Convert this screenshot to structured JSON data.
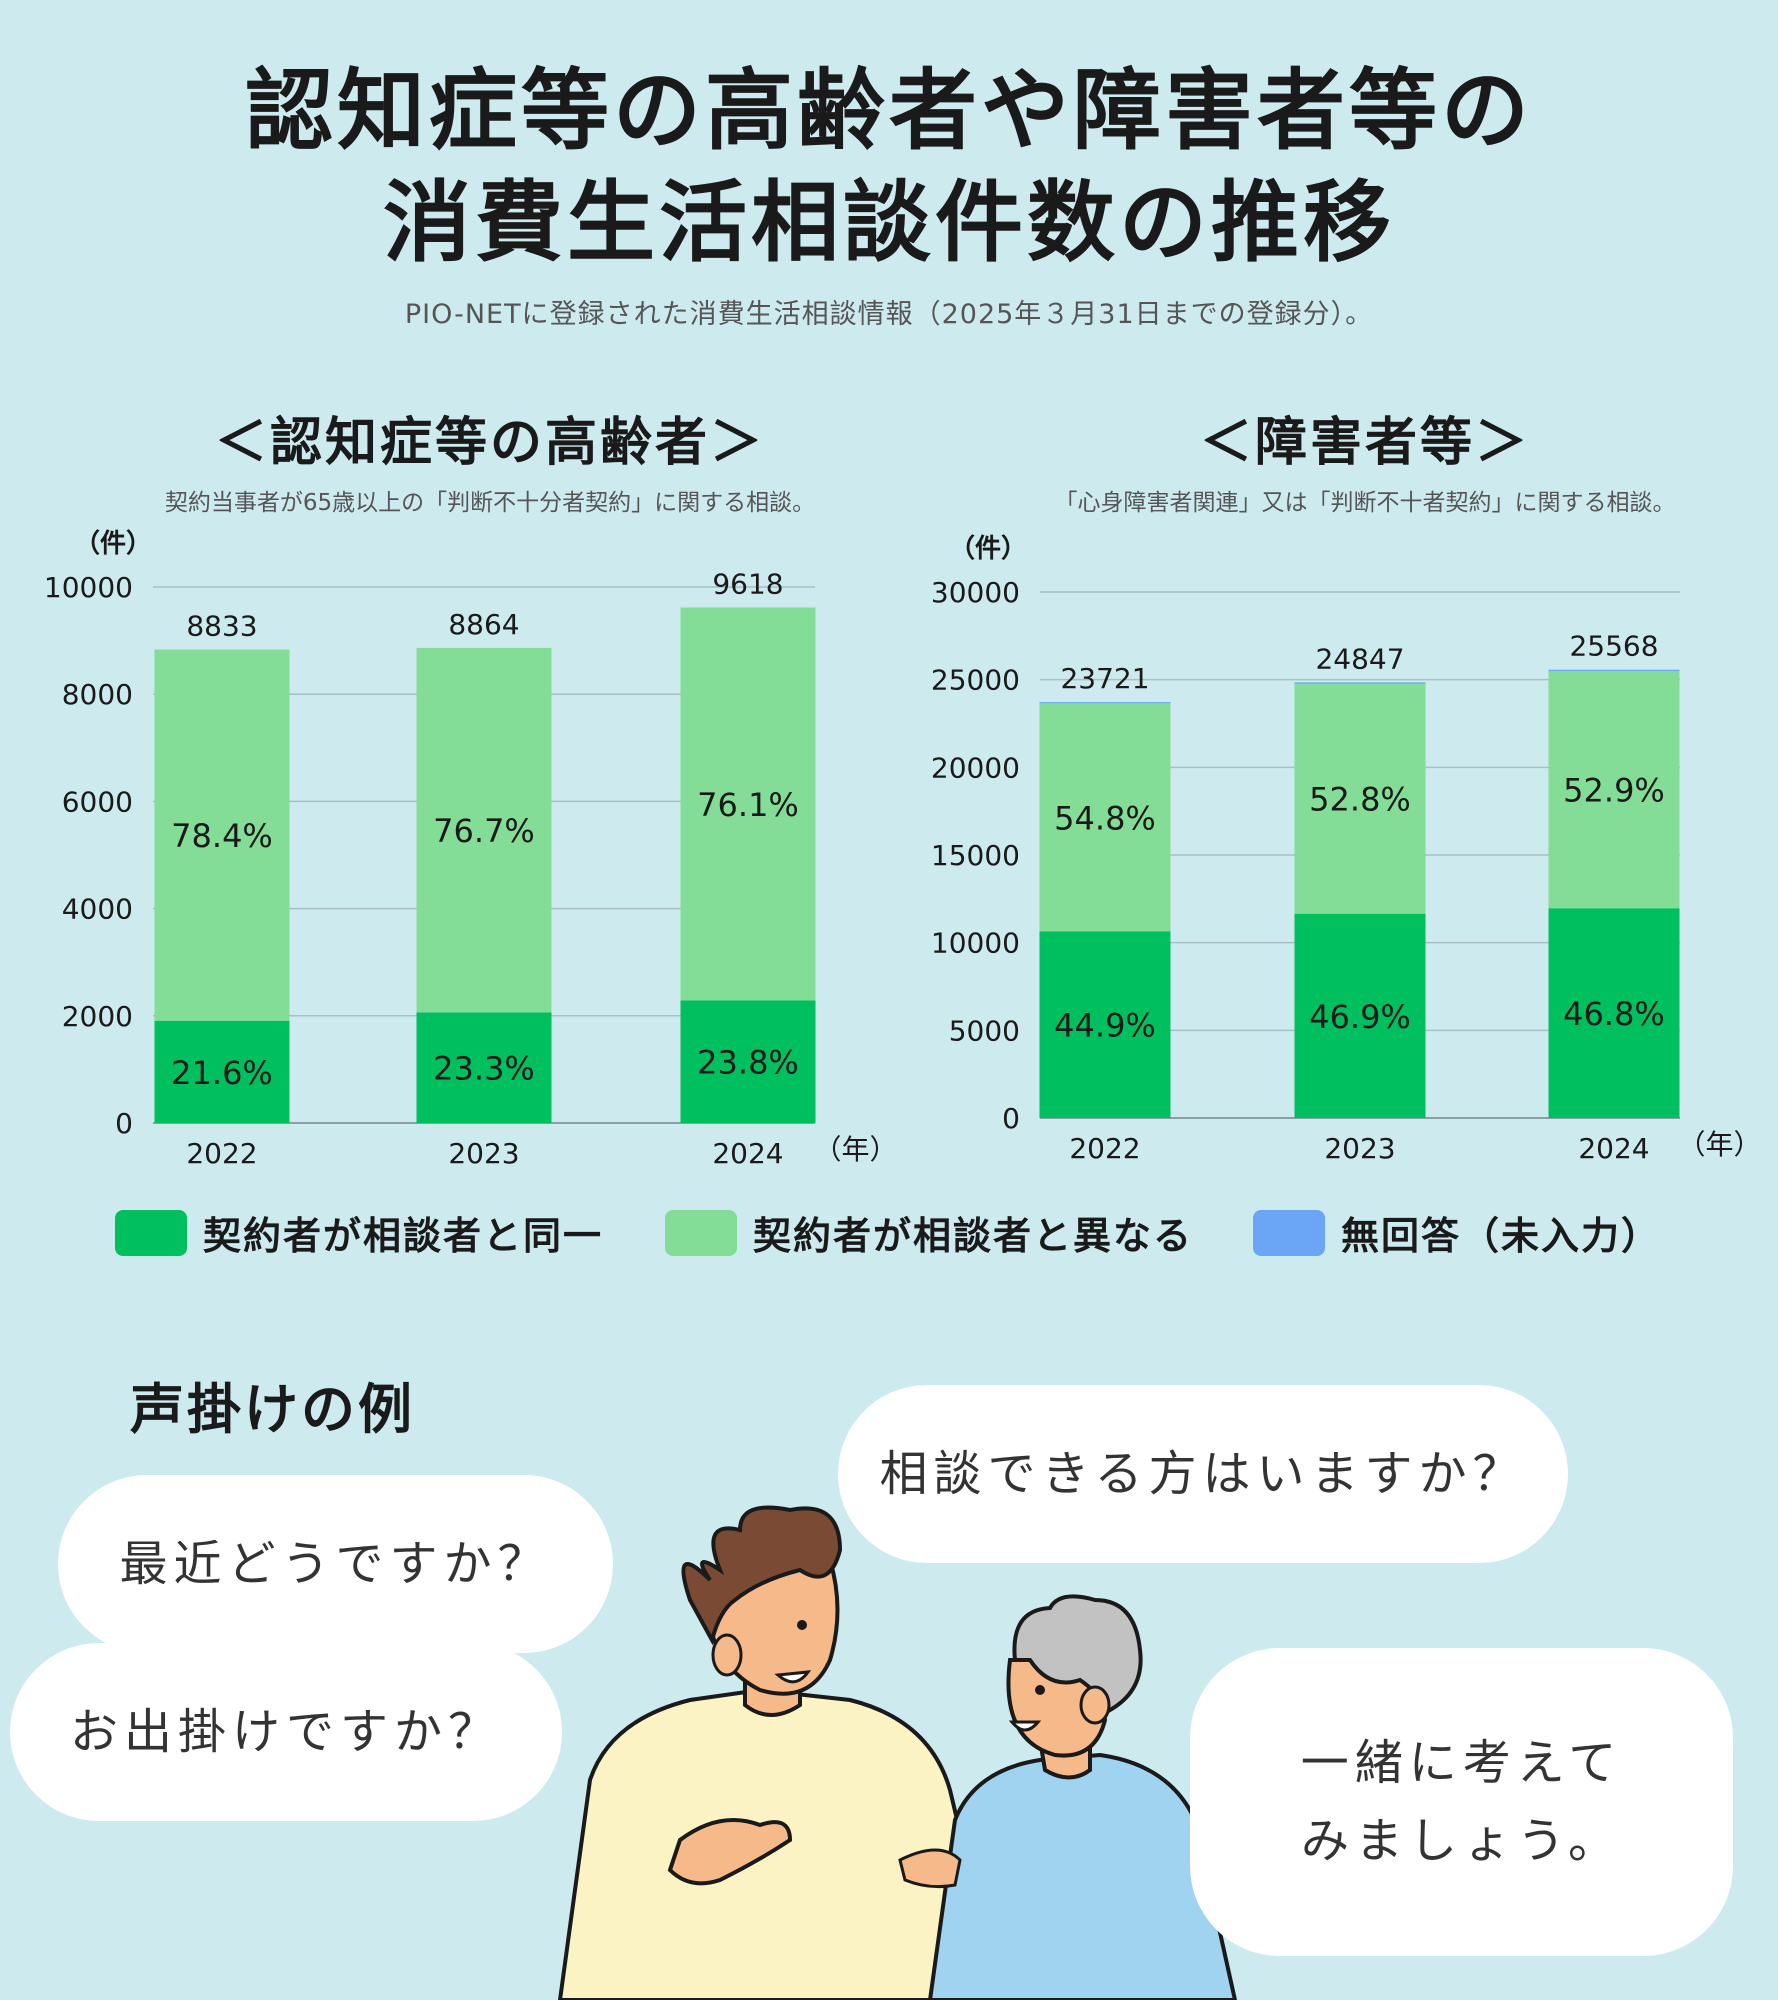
{
  "title": {
    "line1": "認知症等の高齢者や障害者等の",
    "line2": "消費生活相談件数の推移"
  },
  "source_note": "PIO-NETに登録された消費生活相談情報（2025年３月31日までの登録分）。",
  "colors": {
    "background": "#cdebef",
    "same": "#00bf5f",
    "different": "#84dd96",
    "no_answer": "#6aa6f5"
  },
  "legend": {
    "same": "契約者が相談者と同一",
    "different": "契約者が相談者と異なる",
    "no_answer": "無回答（未入力）"
  },
  "chart_data": [
    {
      "type": "bar",
      "stacked": true,
      "title": "＜認知症等の高齢者＞",
      "subtitle": "契約当事者が65歳以上の「判断不十分者契約」に関する相談。",
      "unit_label": "（件）",
      "x_unit_label": "（年）",
      "categories": [
        "2022",
        "2023",
        "2024"
      ],
      "ylim": [
        0,
        10000
      ],
      "yticks": [
        0,
        2000,
        4000,
        6000,
        8000,
        10000
      ],
      "totals": [
        8833,
        8864,
        9618
      ],
      "series": [
        {
          "name": "契約者が相談者と同一",
          "color": "#00bf5f",
          "values": [
            1908,
            2065,
            2289
          ],
          "pct_labels": [
            "21.6%",
            "23.3%",
            "23.8%"
          ]
        },
        {
          "name": "契約者が相談者と異なる",
          "color": "#84dd96",
          "values": [
            6925,
            6799,
            7329
          ],
          "pct_labels": [
            "78.4%",
            "76.7%",
            "76.1%"
          ]
        },
        {
          "name": "無回答（未入力）",
          "color": "#6aa6f5",
          "values": [
            0,
            0,
            0
          ],
          "pct_labels": [
            "",
            "",
            ""
          ]
        }
      ]
    },
    {
      "type": "bar",
      "stacked": true,
      "title": "＜障害者等＞",
      "subtitle": "「心身障害者関連」又は「判断不十者契約」に関する相談。",
      "unit_label": "（件）",
      "x_unit_label": "（年）",
      "categories": [
        "2022",
        "2023",
        "2024"
      ],
      "ylim": [
        0,
        30000
      ],
      "yticks": [
        0,
        5000,
        10000,
        15000,
        20000,
        25000,
        30000
      ],
      "totals": [
        23721,
        24847,
        25568
      ],
      "series": [
        {
          "name": "契約者が相談者と同一",
          "color": "#00bf5f",
          "values": [
            10651,
            11653,
            11966
          ],
          "pct_labels": [
            "44.9%",
            "46.9%",
            "46.8%"
          ]
        },
        {
          "name": "契約者が相談者と異なる",
          "color": "#84dd96",
          "values": [
            12999,
            13119,
            13525
          ],
          "pct_labels": [
            "54.8%",
            "52.8%",
            "52.9%"
          ]
        },
        {
          "name": "無回答（未入力）",
          "color": "#6aa6f5",
          "values": [
            71,
            75,
            77
          ],
          "pct_labels": [
            "",
            "",
            ""
          ]
        }
      ]
    }
  ],
  "voice_section": {
    "heading": "声掛けの例",
    "bubbles": {
      "b1": "最近どうですか？",
      "b2": "お出掛けですか？",
      "b3": "相談できる方はいますか？",
      "b4_line1": "一緒に考えて",
      "b4_line2": "みましょう。"
    }
  }
}
